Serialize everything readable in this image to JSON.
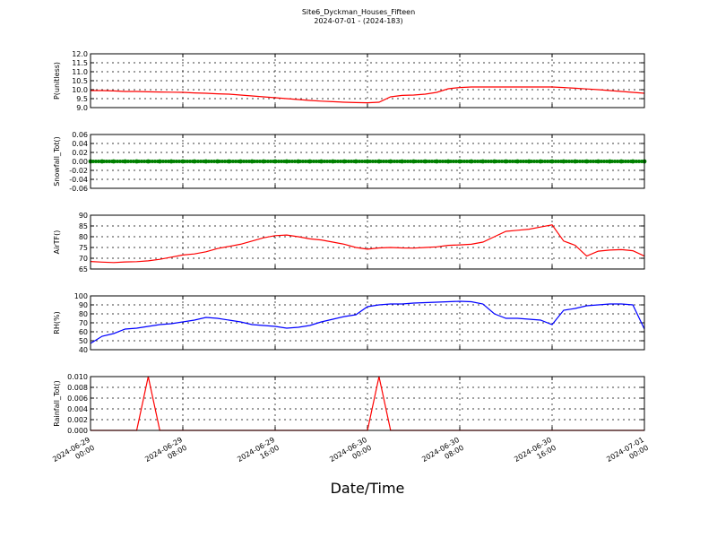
{
  "title": "Site6_Dyckman_Houses_Fifteen",
  "subtitle": "2024-07-01 - (2024-183)",
  "chart_data": [
    {
      "type": "line",
      "ylabel": "P(unitless)",
      "ylim": [
        9.0,
        12.0
      ],
      "yticks": [
        {
          "value": 9.0,
          "label": "9.0"
        },
        9.5,
        {
          "value": 10.0,
          "label": "10.0"
        },
        10.5,
        {
          "value": 11.0,
          "label": "11.0"
        },
        11.5,
        {
          "value": 12.0,
          "label": "12.0"
        }
      ],
      "xlim": [
        "2024-06-29 00:00",
        "2024-07-01 00:00"
      ],
      "xticks": [
        "2024-06-29 00:00",
        "2024-06-29 08:00",
        "2024-06-29 16:00",
        "2024-06-30 00:00",
        "2024-06-30 08:00",
        "2024-06-30 16:00",
        "2024-07-01 00:00"
      ],
      "x": [
        "2024-06-29 00:00",
        "2024-06-29 01:00",
        "2024-06-29 02:00",
        "2024-06-29 03:00",
        "2024-06-29 04:00",
        "2024-06-29 05:00",
        "2024-06-29 06:00",
        "2024-06-29 07:00",
        "2024-06-29 08:00",
        "2024-06-29 09:00",
        "2024-06-29 10:00",
        "2024-06-29 11:00",
        "2024-06-29 12:00",
        "2024-06-29 13:00",
        "2024-06-29 14:00",
        "2024-06-29 15:00",
        "2024-06-29 16:00",
        "2024-06-29 17:00",
        "2024-06-29 18:00",
        "2024-06-29 19:00",
        "2024-06-29 20:00",
        "2024-06-29 21:00",
        "2024-06-29 22:00",
        "2024-06-29 23:00",
        "2024-06-30 00:00",
        "2024-06-30 01:00",
        "2024-06-30 02:00",
        "2024-06-30 03:00",
        "2024-06-30 04:00",
        "2024-06-30 05:00",
        "2024-06-30 06:00",
        "2024-06-30 07:00",
        "2024-06-30 08:00",
        "2024-06-30 09:00",
        "2024-06-30 10:00",
        "2024-06-30 11:00",
        "2024-06-30 12:00",
        "2024-06-30 13:00",
        "2024-06-30 14:00",
        "2024-06-30 15:00",
        "2024-06-30 16:00",
        "2024-06-30 17:00",
        "2024-06-30 18:00",
        "2024-06-30 19:00",
        "2024-06-30 20:00",
        "2024-06-30 21:00",
        "2024-06-30 22:00",
        "2024-06-30 23:00",
        "2024-07-01 00:00"
      ],
      "series": [
        {
          "color": "#ff0000",
          "values": [
            9.95,
            9.95,
            9.93,
            9.9,
            9.9,
            9.88,
            9.87,
            9.86,
            9.85,
            9.82,
            9.8,
            9.77,
            9.75,
            9.7,
            9.65,
            9.6,
            9.55,
            9.5,
            9.45,
            9.4,
            9.36,
            9.33,
            9.3,
            9.28,
            9.27,
            9.3,
            9.6,
            9.68,
            9.7,
            9.75,
            9.85,
            10.05,
            10.12,
            10.15,
            10.15,
            10.15,
            10.15,
            10.15,
            10.15,
            10.15,
            10.15,
            10.12,
            10.08,
            10.04,
            10.0,
            9.95,
            9.9,
            9.85,
            9.8
          ]
        }
      ]
    },
    {
      "type": "line",
      "ylabel": "Snowfall_Tot()",
      "ylim": [
        -0.06,
        0.06
      ],
      "yticks": [
        -0.06,
        -0.04,
        -0.02,
        {
          "value": 0.0,
          "label": "0.00"
        },
        0.02,
        0.04,
        0.06
      ],
      "xlim": [
        "2024-06-29 00:00",
        "2024-07-01 00:00"
      ],
      "xticks": [
        "2024-06-29 00:00",
        "2024-06-29 08:00",
        "2024-06-29 16:00",
        "2024-06-30 00:00",
        "2024-06-30 08:00",
        "2024-06-30 16:00",
        "2024-07-01 00:00"
      ],
      "x": [
        "2024-06-29 00:00",
        "2024-06-29 01:00",
        "2024-06-29 02:00",
        "2024-06-29 03:00",
        "2024-06-29 04:00",
        "2024-06-29 05:00",
        "2024-06-29 06:00",
        "2024-06-29 07:00",
        "2024-06-29 08:00",
        "2024-06-29 09:00",
        "2024-06-29 10:00",
        "2024-06-29 11:00",
        "2024-06-29 12:00",
        "2024-06-29 13:00",
        "2024-06-29 14:00",
        "2024-06-29 15:00",
        "2024-06-29 16:00",
        "2024-06-29 17:00",
        "2024-06-29 18:00",
        "2024-06-29 19:00",
        "2024-06-29 20:00",
        "2024-06-29 21:00",
        "2024-06-29 22:00",
        "2024-06-29 23:00",
        "2024-06-30 00:00",
        "2024-06-30 01:00",
        "2024-06-30 02:00",
        "2024-06-30 03:00",
        "2024-06-30 04:00",
        "2024-06-30 05:00",
        "2024-06-30 06:00",
        "2024-06-30 07:00",
        "2024-06-30 08:00",
        "2024-06-30 09:00",
        "2024-06-30 10:00",
        "2024-06-30 11:00",
        "2024-06-30 12:00",
        "2024-06-30 13:00",
        "2024-06-30 14:00",
        "2024-06-30 15:00",
        "2024-06-30 16:00",
        "2024-06-30 17:00",
        "2024-06-30 18:00",
        "2024-06-30 19:00",
        "2024-06-30 20:00",
        "2024-06-30 21:00",
        "2024-06-30 22:00",
        "2024-06-30 23:00",
        "2024-07-01 00:00"
      ],
      "markers": true,
      "series": [
        {
          "color": "#008000",
          "values": [
            0,
            0,
            0,
            0,
            0,
            0,
            0,
            0,
            0,
            0,
            0,
            0,
            0,
            0,
            0,
            0,
            0,
            0,
            0,
            0,
            0,
            0,
            0,
            0,
            0,
            0,
            0,
            0,
            0,
            0,
            0,
            0,
            0,
            0,
            0,
            0,
            0,
            0,
            0,
            0,
            0,
            0,
            0,
            0,
            0,
            0,
            0,
            0,
            0
          ]
        }
      ]
    },
    {
      "type": "line",
      "ylabel": "AirTF()",
      "ylim": [
        65,
        90
      ],
      "yticks": [
        65,
        70,
        75,
        80,
        85,
        90
      ],
      "xlim": [
        "2024-06-29 00:00",
        "2024-07-01 00:00"
      ],
      "xticks": [
        "2024-06-29 00:00",
        "2024-06-29 08:00",
        "2024-06-29 16:00",
        "2024-06-30 00:00",
        "2024-06-30 08:00",
        "2024-06-30 16:00",
        "2024-07-01 00:00"
      ],
      "x": [
        "2024-06-29 00:00",
        "2024-06-29 01:00",
        "2024-06-29 02:00",
        "2024-06-29 03:00",
        "2024-06-29 04:00",
        "2024-06-29 05:00",
        "2024-06-29 06:00",
        "2024-06-29 07:00",
        "2024-06-29 08:00",
        "2024-06-29 09:00",
        "2024-06-29 10:00",
        "2024-06-29 11:00",
        "2024-06-29 12:00",
        "2024-06-29 13:00",
        "2024-06-29 14:00",
        "2024-06-29 15:00",
        "2024-06-29 16:00",
        "2024-06-29 17:00",
        "2024-06-29 18:00",
        "2024-06-29 19:00",
        "2024-06-29 20:00",
        "2024-06-29 21:00",
        "2024-06-29 22:00",
        "2024-06-29 23:00",
        "2024-06-30 00:00",
        "2024-06-30 01:00",
        "2024-06-30 02:00",
        "2024-06-30 03:00",
        "2024-06-30 04:00",
        "2024-06-30 05:00",
        "2024-06-30 06:00",
        "2024-06-30 07:00",
        "2024-06-30 08:00",
        "2024-06-30 09:00",
        "2024-06-30 10:00",
        "2024-06-30 11:00",
        "2024-06-30 12:00",
        "2024-06-30 13:00",
        "2024-06-30 14:00",
        "2024-06-30 15:00",
        "2024-06-30 16:00",
        "2024-06-30 17:00",
        "2024-06-30 18:00",
        "2024-06-30 19:00",
        "2024-06-30 20:00",
        "2024-06-30 21:00",
        "2024-06-30 22:00",
        "2024-06-30 23:00",
        "2024-07-01 00:00"
      ],
      "series": [
        {
          "color": "#ff0000",
          "values": [
            68.5,
            68.2,
            68,
            68.3,
            68.4,
            68.8,
            69.5,
            70.5,
            71.5,
            72,
            73,
            74.5,
            75.5,
            76.5,
            78,
            79.5,
            80.5,
            80.8,
            80,
            79,
            78.5,
            77.5,
            76.5,
            75,
            74.2,
            74.8,
            75,
            74.8,
            74.7,
            75,
            75.3,
            76,
            76.2,
            76.5,
            77.5,
            80,
            82.5,
            83,
            83.5,
            84.5,
            85.5,
            78,
            76,
            71,
            73.3,
            73.8,
            74,
            73.5,
            71
          ]
        }
      ]
    },
    {
      "type": "line",
      "ylabel": "RH(%)",
      "ylim": [
        40,
        100
      ],
      "yticks": [
        40,
        50,
        60,
        70,
        80,
        90,
        100
      ],
      "xlim": [
        "2024-06-29 00:00",
        "2024-07-01 00:00"
      ],
      "xticks": [
        "2024-06-29 00:00",
        "2024-06-29 08:00",
        "2024-06-29 16:00",
        "2024-06-30 00:00",
        "2024-06-30 08:00",
        "2024-06-30 16:00",
        "2024-07-01 00:00"
      ],
      "x": [
        "2024-06-29 00:00",
        "2024-06-29 01:00",
        "2024-06-29 02:00",
        "2024-06-29 03:00",
        "2024-06-29 04:00",
        "2024-06-29 05:00",
        "2024-06-29 06:00",
        "2024-06-29 07:00",
        "2024-06-29 08:00",
        "2024-06-29 09:00",
        "2024-06-29 10:00",
        "2024-06-29 11:00",
        "2024-06-29 12:00",
        "2024-06-29 13:00",
        "2024-06-29 14:00",
        "2024-06-29 15:00",
        "2024-06-29 16:00",
        "2024-06-29 17:00",
        "2024-06-29 18:00",
        "2024-06-29 19:00",
        "2024-06-29 20:00",
        "2024-06-29 21:00",
        "2024-06-29 22:00",
        "2024-06-29 23:00",
        "2024-06-30 00:00",
        "2024-06-30 01:00",
        "2024-06-30 02:00",
        "2024-06-30 03:00",
        "2024-06-30 04:00",
        "2024-06-30 05:00",
        "2024-06-30 06:00",
        "2024-06-30 07:00",
        "2024-06-30 08:00",
        "2024-06-30 09:00",
        "2024-06-30 10:00",
        "2024-06-30 11:00",
        "2024-06-30 12:00",
        "2024-06-30 13:00",
        "2024-06-30 14:00",
        "2024-06-30 15:00",
        "2024-06-30 16:00",
        "2024-06-30 17:00",
        "2024-06-30 18:00",
        "2024-06-30 19:00",
        "2024-06-30 20:00",
        "2024-06-30 21:00",
        "2024-06-30 22:00",
        "2024-06-30 23:00",
        "2024-07-01 00:00"
      ],
      "series": [
        {
          "color": "#0000ff",
          "values": [
            47,
            55,
            58,
            63,
            64,
            66,
            68,
            69,
            71,
            73,
            76,
            75,
            73,
            71,
            68,
            67,
            66,
            64,
            65,
            67,
            71,
            74,
            77,
            79,
            88,
            90,
            91,
            91,
            92,
            92.5,
            93,
            93.5,
            94,
            93.5,
            91,
            80,
            75,
            75,
            74,
            73,
            68,
            84,
            86,
            89,
            90,
            91,
            91,
            90,
            63
          ]
        }
      ]
    },
    {
      "type": "line",
      "ylabel": "Rainfall_Tot()",
      "xlabel": "Date/Time",
      "ylim": [
        0,
        0.01
      ],
      "yticks": [
        {
          "value": 0,
          "label": "0.000"
        },
        0.002,
        0.004,
        0.006,
        0.008,
        {
          "value": 0.01,
          "label": "0.010"
        }
      ],
      "xlim": [
        "2024-06-29 00:00",
        "2024-07-01 00:00"
      ],
      "xticks": [
        {
          "value": "2024-06-29 00:00",
          "label": [
            "2024-06-29",
            "00:00"
          ]
        },
        {
          "value": "2024-06-29 08:00",
          "label": [
            "2024-06-29",
            "08:00"
          ]
        },
        {
          "value": "2024-06-29 16:00",
          "label": [
            "2024-06-29",
            "16:00"
          ]
        },
        {
          "value": "2024-06-30 00:00",
          "label": [
            "2024-06-30",
            "00:00"
          ]
        },
        {
          "value": "2024-06-30 08:00",
          "label": [
            "2024-06-30",
            "08:00"
          ]
        },
        {
          "value": "2024-06-30 16:00",
          "label": [
            "2024-06-30",
            "16:00"
          ]
        },
        {
          "value": "2024-07-01 00:00",
          "label": [
            "2024-07-01",
            "00:00"
          ]
        }
      ],
      "x": [
        "2024-06-29 00:00",
        "2024-06-29 01:00",
        "2024-06-29 02:00",
        "2024-06-29 03:00",
        "2024-06-29 04:00",
        "2024-06-29 05:00",
        "2024-06-29 06:00",
        "2024-06-29 07:00",
        "2024-06-29 08:00",
        "2024-06-29 09:00",
        "2024-06-29 10:00",
        "2024-06-29 11:00",
        "2024-06-29 12:00",
        "2024-06-29 13:00",
        "2024-06-29 14:00",
        "2024-06-29 15:00",
        "2024-06-29 16:00",
        "2024-06-29 17:00",
        "2024-06-29 18:00",
        "2024-06-29 19:00",
        "2024-06-29 20:00",
        "2024-06-29 21:00",
        "2024-06-29 22:00",
        "2024-06-29 23:00",
        "2024-06-30 00:00",
        "2024-06-30 01:00",
        "2024-06-30 02:00",
        "2024-06-30 03:00",
        "2024-06-30 04:00",
        "2024-06-30 05:00",
        "2024-06-30 06:00",
        "2024-06-30 07:00",
        "2024-06-30 08:00",
        "2024-06-30 09:00",
        "2024-06-30 10:00",
        "2024-06-30 11:00",
        "2024-06-30 12:00",
        "2024-06-30 13:00",
        "2024-06-30 14:00",
        "2024-06-30 15:00",
        "2024-06-30 16:00",
        "2024-06-30 17:00",
        "2024-06-30 18:00",
        "2024-06-30 19:00",
        "2024-06-30 20:00",
        "2024-06-30 21:00",
        "2024-06-30 22:00",
        "2024-06-30 23:00",
        "2024-07-01 00:00"
      ],
      "series": [
        {
          "color": "#ff0000",
          "values": [
            0,
            0,
            0,
            0,
            0,
            0.01,
            0,
            0,
            0,
            0,
            0,
            0,
            0,
            0,
            0,
            0,
            0,
            0,
            0,
            0,
            0,
            0,
            0,
            0,
            0,
            0.01,
            0,
            0,
            0,
            0,
            0,
            0,
            0,
            0,
            0,
            0,
            0,
            0,
            0,
            0,
            0,
            0,
            0,
            0,
            0,
            0,
            0,
            0,
            0
          ]
        }
      ]
    }
  ]
}
